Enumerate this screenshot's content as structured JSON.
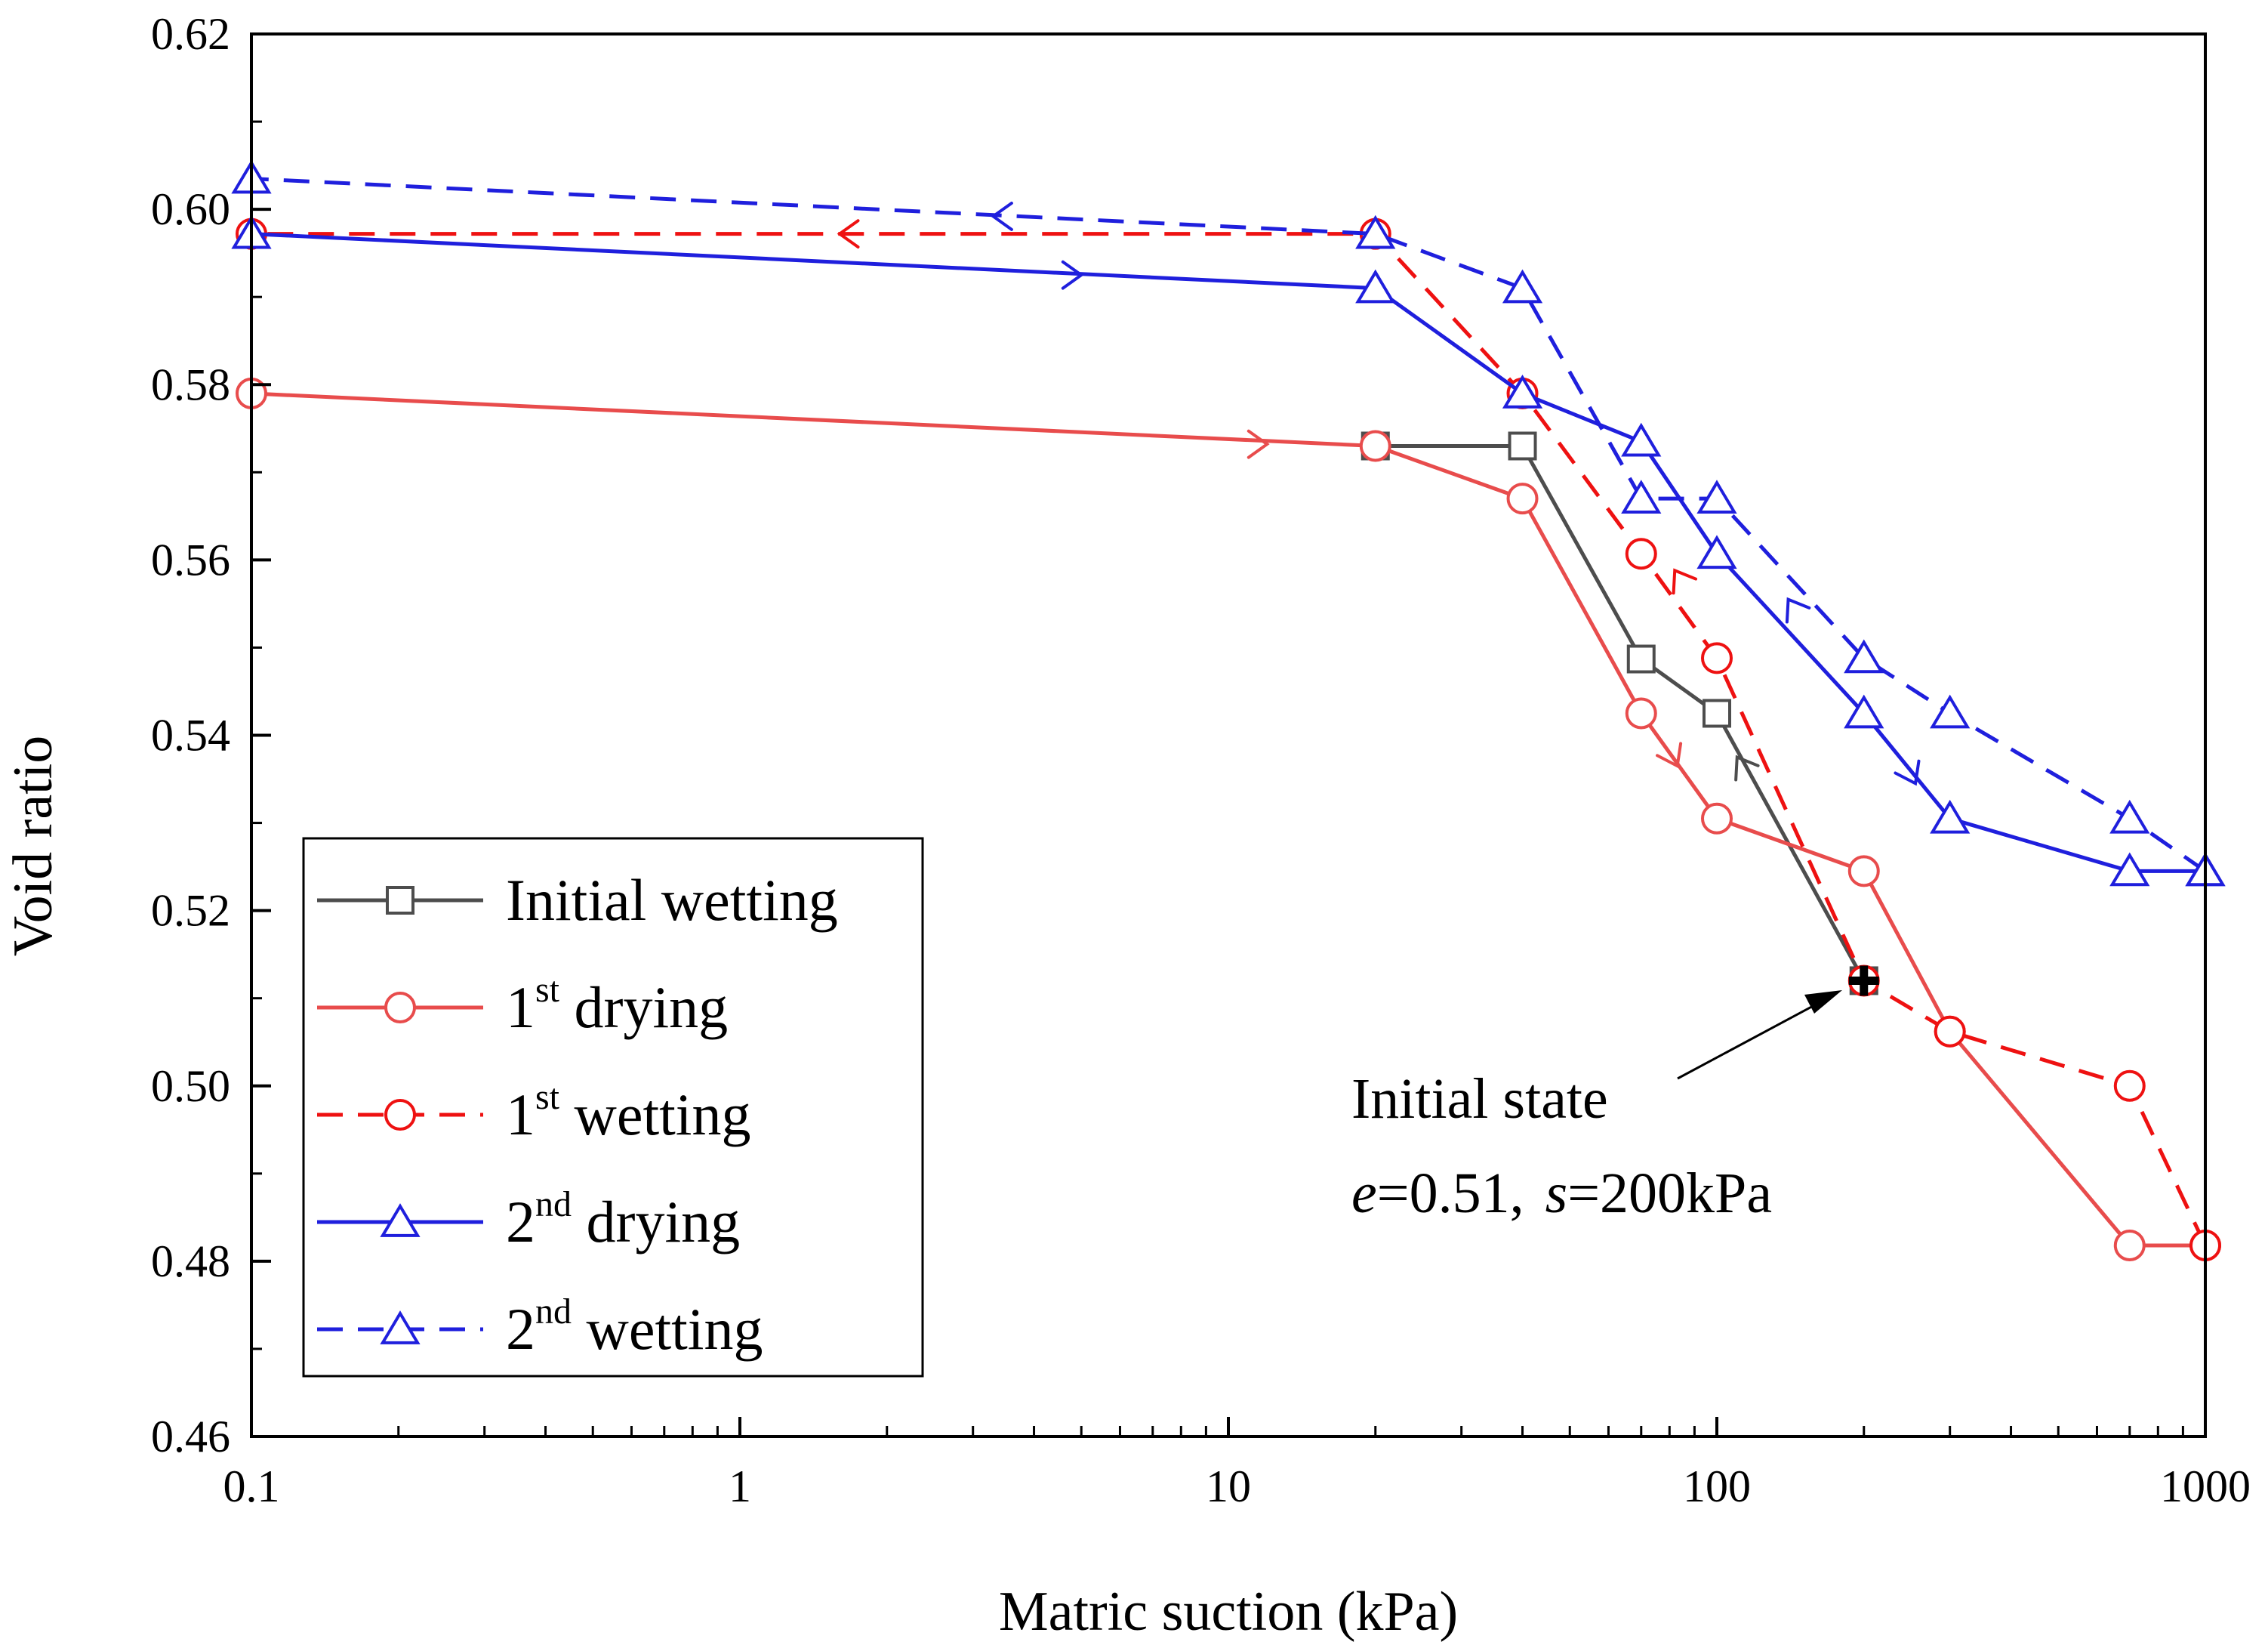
{
  "chart_data": {
    "type": "line",
    "xscale": "log",
    "xlabel": "Matric suction (kPa)",
    "ylabel": "Void ratio",
    "xlim": [
      0.1,
      1000
    ],
    "ylim": [
      0.46,
      0.62
    ],
    "x_ticks": [
      {
        "value": 0.1,
        "label": "0.1"
      },
      {
        "value": 1,
        "label": "1"
      },
      {
        "value": 10,
        "label": "10"
      },
      {
        "value": 100,
        "label": "100"
      },
      {
        "value": 1000,
        "label": "1000"
      }
    ],
    "y_ticks": [
      {
        "value": 0.46,
        "label": "0.46"
      },
      {
        "value": 0.48,
        "label": "0.48"
      },
      {
        "value": 0.5,
        "label": "0.50"
      },
      {
        "value": 0.52,
        "label": "0.52"
      },
      {
        "value": 0.54,
        "label": "0.54"
      },
      {
        "value": 0.56,
        "label": "0.56"
      },
      {
        "value": 0.58,
        "label": "0.58"
      },
      {
        "value": 0.6,
        "label": "0.60"
      },
      {
        "value": 0.62,
        "label": "0.62"
      }
    ],
    "series": [
      {
        "id": "initial-wetting",
        "name": "Initial wetting",
        "color": "#4d4d4d",
        "dash": "solid",
        "marker": "square",
        "points": [
          [
            200,
            0.512
          ],
          [
            100,
            0.5425
          ],
          [
            70,
            0.5487
          ],
          [
            40,
            0.573
          ],
          [
            20,
            0.573
          ]
        ],
        "arrows": [
          {
            "x": 110,
            "y": 0.5375,
            "direction": "up-left"
          }
        ]
      },
      {
        "id": "first-drying",
        "name": "1st drying",
        "color": "#e84c4c",
        "dash": "solid",
        "marker": "circle",
        "points": [
          [
            0.1,
            0.579
          ],
          [
            20,
            0.573
          ],
          [
            40,
            0.567
          ],
          [
            70,
            0.5425
          ],
          [
            100,
            0.5305
          ],
          [
            200,
            0.5245
          ],
          [
            300,
            0.5062
          ],
          [
            700,
            0.4818
          ],
          [
            1000,
            0.4818
          ]
        ],
        "arrows": [
          {
            "x": 12,
            "y": 0.5732,
            "direction": "right"
          },
          {
            "x": 83,
            "y": 0.5365,
            "direction": "down-right"
          }
        ]
      },
      {
        "id": "first-wetting",
        "name": "1st wetting",
        "color": "#ee1111",
        "dash": "dashed",
        "marker": "circle",
        "points": [
          [
            1000,
            0.4818
          ],
          [
            700,
            0.5
          ],
          [
            300,
            0.5062
          ],
          [
            200,
            0.512
          ],
          [
            100,
            0.5488
          ],
          [
            70,
            0.5607
          ],
          [
            40,
            0.579
          ],
          [
            20,
            0.5972
          ],
          [
            0.1,
            0.5972
          ]
        ],
        "arrows": [
          {
            "x": 82,
            "y": 0.5588,
            "direction": "up-left"
          },
          {
            "x": 1.6,
            "y": 0.5972,
            "direction": "left"
          }
        ]
      },
      {
        "id": "second-drying",
        "name": "2nd drying",
        "color": "#1f1fdd",
        "dash": "solid",
        "marker": "triangle",
        "points": [
          [
            0.1,
            0.5972
          ],
          [
            20,
            0.591
          ],
          [
            40,
            0.579
          ],
          [
            70,
            0.5735
          ],
          [
            100,
            0.5607
          ],
          [
            200,
            0.5425
          ],
          [
            300,
            0.5305
          ],
          [
            700,
            0.5245
          ],
          [
            1000,
            0.5245
          ]
        ],
        "arrows": [
          {
            "x": 5,
            "y": 0.5925,
            "direction": "right"
          },
          {
            "x": 255,
            "y": 0.5345,
            "direction": "down-right"
          }
        ]
      },
      {
        "id": "second-wetting",
        "name": "2nd wetting",
        "color": "#1f1fdd",
        "dash": "dashed",
        "marker": "triangle",
        "points": [
          [
            1000,
            0.5245
          ],
          [
            700,
            0.5305
          ],
          [
            300,
            0.5425
          ],
          [
            200,
            0.5488
          ],
          [
            100,
            0.567
          ],
          [
            70,
            0.567
          ],
          [
            40,
            0.591
          ],
          [
            20,
            0.5972
          ],
          [
            0.1,
            0.6035
          ]
        ],
        "arrows": [
          {
            "x": 140,
            "y": 0.5555,
            "direction": "up-left"
          },
          {
            "x": 3.3,
            "y": 0.5992,
            "direction": "left"
          }
        ]
      }
    ],
    "initial_point": {
      "x": 200,
      "y": 0.512,
      "marker": "cross"
    },
    "annotation": {
      "line1": "Initial state",
      "line2_e_symbol": "e",
      "line2_e_value": "=0.51,",
      "line2_s_symbol": "s",
      "line2_s_value": "=200kPa"
    },
    "legend": {
      "position": "bottom-left",
      "entries": [
        {
          "series": "initial-wetting",
          "base": "Initial wetting",
          "sup": "",
          "rest": ""
        },
        {
          "series": "first-drying",
          "base": "1",
          "sup": "st",
          "rest": " drying"
        },
        {
          "series": "first-wetting",
          "base": "1",
          "sup": "st",
          "rest": " wetting"
        },
        {
          "series": "second-drying",
          "base": "2",
          "sup": "nd",
          "rest": " drying"
        },
        {
          "series": "second-wetting",
          "base": "2",
          "sup": "nd",
          "rest": " wetting"
        }
      ]
    }
  }
}
